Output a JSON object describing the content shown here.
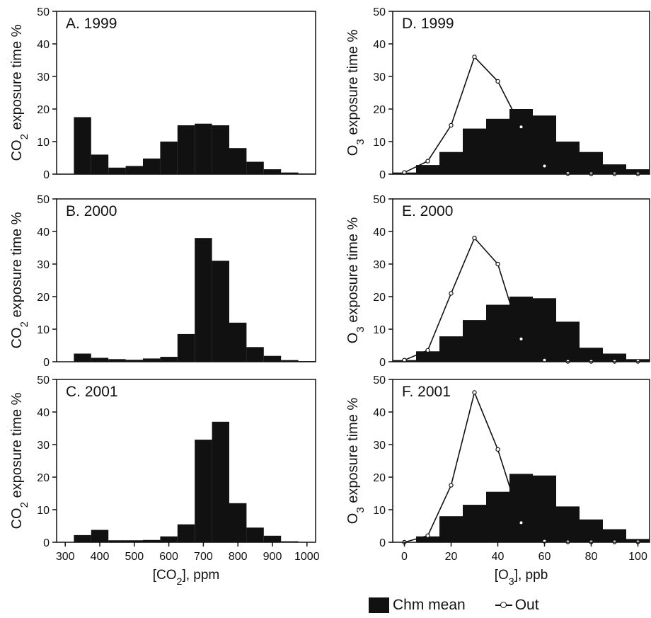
{
  "colors": {
    "bar": "#111111",
    "line": "#111111",
    "marker_fill": "#ffffff",
    "background": "#ffffff"
  },
  "legend": {
    "chm_mean": "Chm mean",
    "out": "Out"
  },
  "chart_data": [
    {
      "type": "bar",
      "panel_label": "A. 1999",
      "xlabel": "",
      "ylabel": "CO₂ exposure time %",
      "xlim": [
        275,
        1025
      ],
      "ylim": [
        0,
        50
      ],
      "yticks": [
        0,
        10,
        20,
        30,
        40,
        50
      ],
      "xticks": [],
      "bin_edges": [
        275,
        325,
        375,
        425,
        475,
        525,
        575,
        625,
        675,
        725,
        775,
        825,
        875,
        925,
        975,
        1025
      ],
      "series": [
        {
          "name": "Chm mean",
          "values": [
            0,
            17.5,
            6,
            2,
            2.5,
            4.8,
            10,
            15,
            15.5,
            15,
            8,
            3.8,
            1.5,
            0.5,
            0.2
          ]
        }
      ]
    },
    {
      "type": "bar",
      "panel_label": "B. 2000",
      "xlabel": "",
      "ylabel": "CO₂ exposure time %",
      "xlim": [
        275,
        1025
      ],
      "ylim": [
        0,
        50
      ],
      "yticks": [
        0,
        10,
        20,
        30,
        40,
        50
      ],
      "xticks": [],
      "bin_edges": [
        275,
        325,
        375,
        425,
        475,
        525,
        575,
        625,
        675,
        725,
        775,
        825,
        875,
        925,
        975,
        1025
      ],
      "series": [
        {
          "name": "Chm mean",
          "values": [
            0,
            2.5,
            1.2,
            0.8,
            0.6,
            1,
            1.5,
            8.5,
            38,
            31,
            12,
            4.5,
            1.8,
            0.5,
            0.2
          ]
        }
      ]
    },
    {
      "type": "bar",
      "panel_label": "C. 2001",
      "xlabel": "[CO₂], ppm",
      "ylabel": "CO₂ exposure time %",
      "xlim": [
        275,
        1025
      ],
      "ylim": [
        0,
        50
      ],
      "yticks": [
        0,
        10,
        20,
        30,
        40,
        50
      ],
      "xticks": [
        300,
        400,
        500,
        600,
        700,
        800,
        900,
        1000
      ],
      "bin_edges": [
        275,
        325,
        375,
        425,
        475,
        525,
        575,
        625,
        675,
        725,
        775,
        825,
        875,
        925,
        975,
        1025
      ],
      "series": [
        {
          "name": "Chm mean",
          "values": [
            0,
            2.2,
            3.8,
            0.6,
            0.6,
            0.7,
            1.8,
            5.5,
            31.5,
            37,
            12,
            4.5,
            2,
            0.3,
            0.1
          ]
        }
      ]
    },
    {
      "type": "bar",
      "panel_label": "D. 1999",
      "xlabel": "",
      "ylabel": "O₃ exposure time %",
      "xlim": [
        -5,
        105
      ],
      "ylim": [
        0,
        50
      ],
      "yticks": [
        0,
        10,
        20,
        30,
        40,
        50
      ],
      "xticks": [],
      "bin_edges": [
        -5,
        5,
        15,
        25,
        35,
        45,
        55,
        65,
        75,
        85,
        95,
        105
      ],
      "series": [
        {
          "name": "Chm mean",
          "values": [
            0.5,
            2.8,
            6.8,
            14,
            17,
            20,
            18,
            10,
            6.8,
            3,
            1.5
          ]
        },
        {
          "name": "Out",
          "x": [
            0,
            10,
            20,
            30,
            40,
            50,
            60,
            70,
            80,
            90,
            100
          ],
          "values": [
            0.5,
            4,
            15,
            36,
            28.5,
            14.5,
            2.5,
            0.2,
            0.1,
            0.1,
            0.1
          ]
        }
      ]
    },
    {
      "type": "bar",
      "panel_label": "E. 2000",
      "xlabel": "",
      "ylabel": "O₃ exposure time %",
      "xlim": [
        -5,
        105
      ],
      "ylim": [
        0,
        50
      ],
      "yticks": [
        0,
        10,
        20,
        30,
        40,
        50
      ],
      "xticks": [],
      "bin_edges": [
        -5,
        5,
        15,
        25,
        35,
        45,
        55,
        65,
        75,
        85,
        95,
        105
      ],
      "series": [
        {
          "name": "Chm mean",
          "values": [
            0.5,
            3.2,
            7.8,
            12.8,
            17.5,
            20,
            19.5,
            12.3,
            4.3,
            2.5,
            0.8
          ]
        },
        {
          "name": "Out",
          "x": [
            0,
            10,
            20,
            30,
            40,
            50,
            60,
            70,
            80,
            90,
            100
          ],
          "values": [
            0.5,
            3.5,
            21,
            38,
            30,
            7,
            0.5,
            0.1,
            0.1,
            0.1,
            0.1
          ]
        }
      ]
    },
    {
      "type": "bar",
      "panel_label": "F. 2001",
      "xlabel": "[O₃], ppb",
      "ylabel": "O₃ exposure time %",
      "xlim": [
        -5,
        105
      ],
      "ylim": [
        0,
        50
      ],
      "yticks": [
        0,
        10,
        20,
        30,
        40,
        50
      ],
      "xticks": [
        0,
        20,
        40,
        60,
        80,
        100
      ],
      "bin_edges": [
        -5,
        5,
        15,
        25,
        35,
        45,
        55,
        65,
        75,
        85,
        95,
        105
      ],
      "series": [
        {
          "name": "Chm mean",
          "values": [
            0,
            1.8,
            8,
            11.5,
            15.5,
            21,
            20.5,
            11,
            7,
            4,
            1
          ]
        },
        {
          "name": "Out",
          "x": [
            0,
            10,
            20,
            30,
            40,
            50,
            60,
            70,
            80,
            90,
            100
          ],
          "values": [
            0,
            2,
            17.5,
            46,
            28.5,
            6,
            0.3,
            0.1,
            0.1,
            0.1,
            0.1
          ]
        }
      ]
    }
  ]
}
